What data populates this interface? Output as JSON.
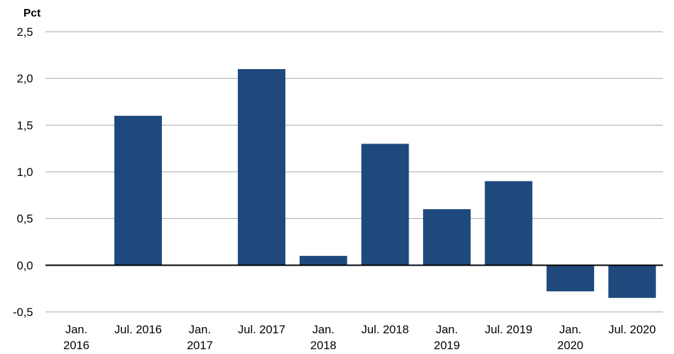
{
  "chart_data": {
    "type": "bar",
    "ylabel": "Pct",
    "categories": [
      [
        "Jan.",
        "2016"
      ],
      [
        "Jul. 2016"
      ],
      [
        "Jan.",
        "2017"
      ],
      [
        "Jul. 2017"
      ],
      [
        "Jan.",
        "2018"
      ],
      [
        "Jul. 2018"
      ],
      [
        "Jan.",
        "2019"
      ],
      [
        "Jul. 2019"
      ],
      [
        "Jan.",
        "2020"
      ],
      [
        "Jul. 2020"
      ]
    ],
    "values": [
      0.0,
      1.6,
      0.0,
      2.1,
      0.1,
      1.3,
      0.6,
      0.9,
      -0.28,
      -0.35
    ],
    "ylim": [
      -0.5,
      2.5
    ],
    "yticks": [
      2.5,
      2.0,
      1.5,
      1.0,
      0.5,
      0.0,
      -0.5
    ],
    "ytick_labels": [
      "2,5",
      "2,0",
      "1,5",
      "1,0",
      "0,5",
      "0,0",
      "-0,5"
    ],
    "grid": true,
    "bar_color": "#1f497d",
    "grid_color": "#a6a6a6",
    "zero_line_color": "#000000"
  }
}
